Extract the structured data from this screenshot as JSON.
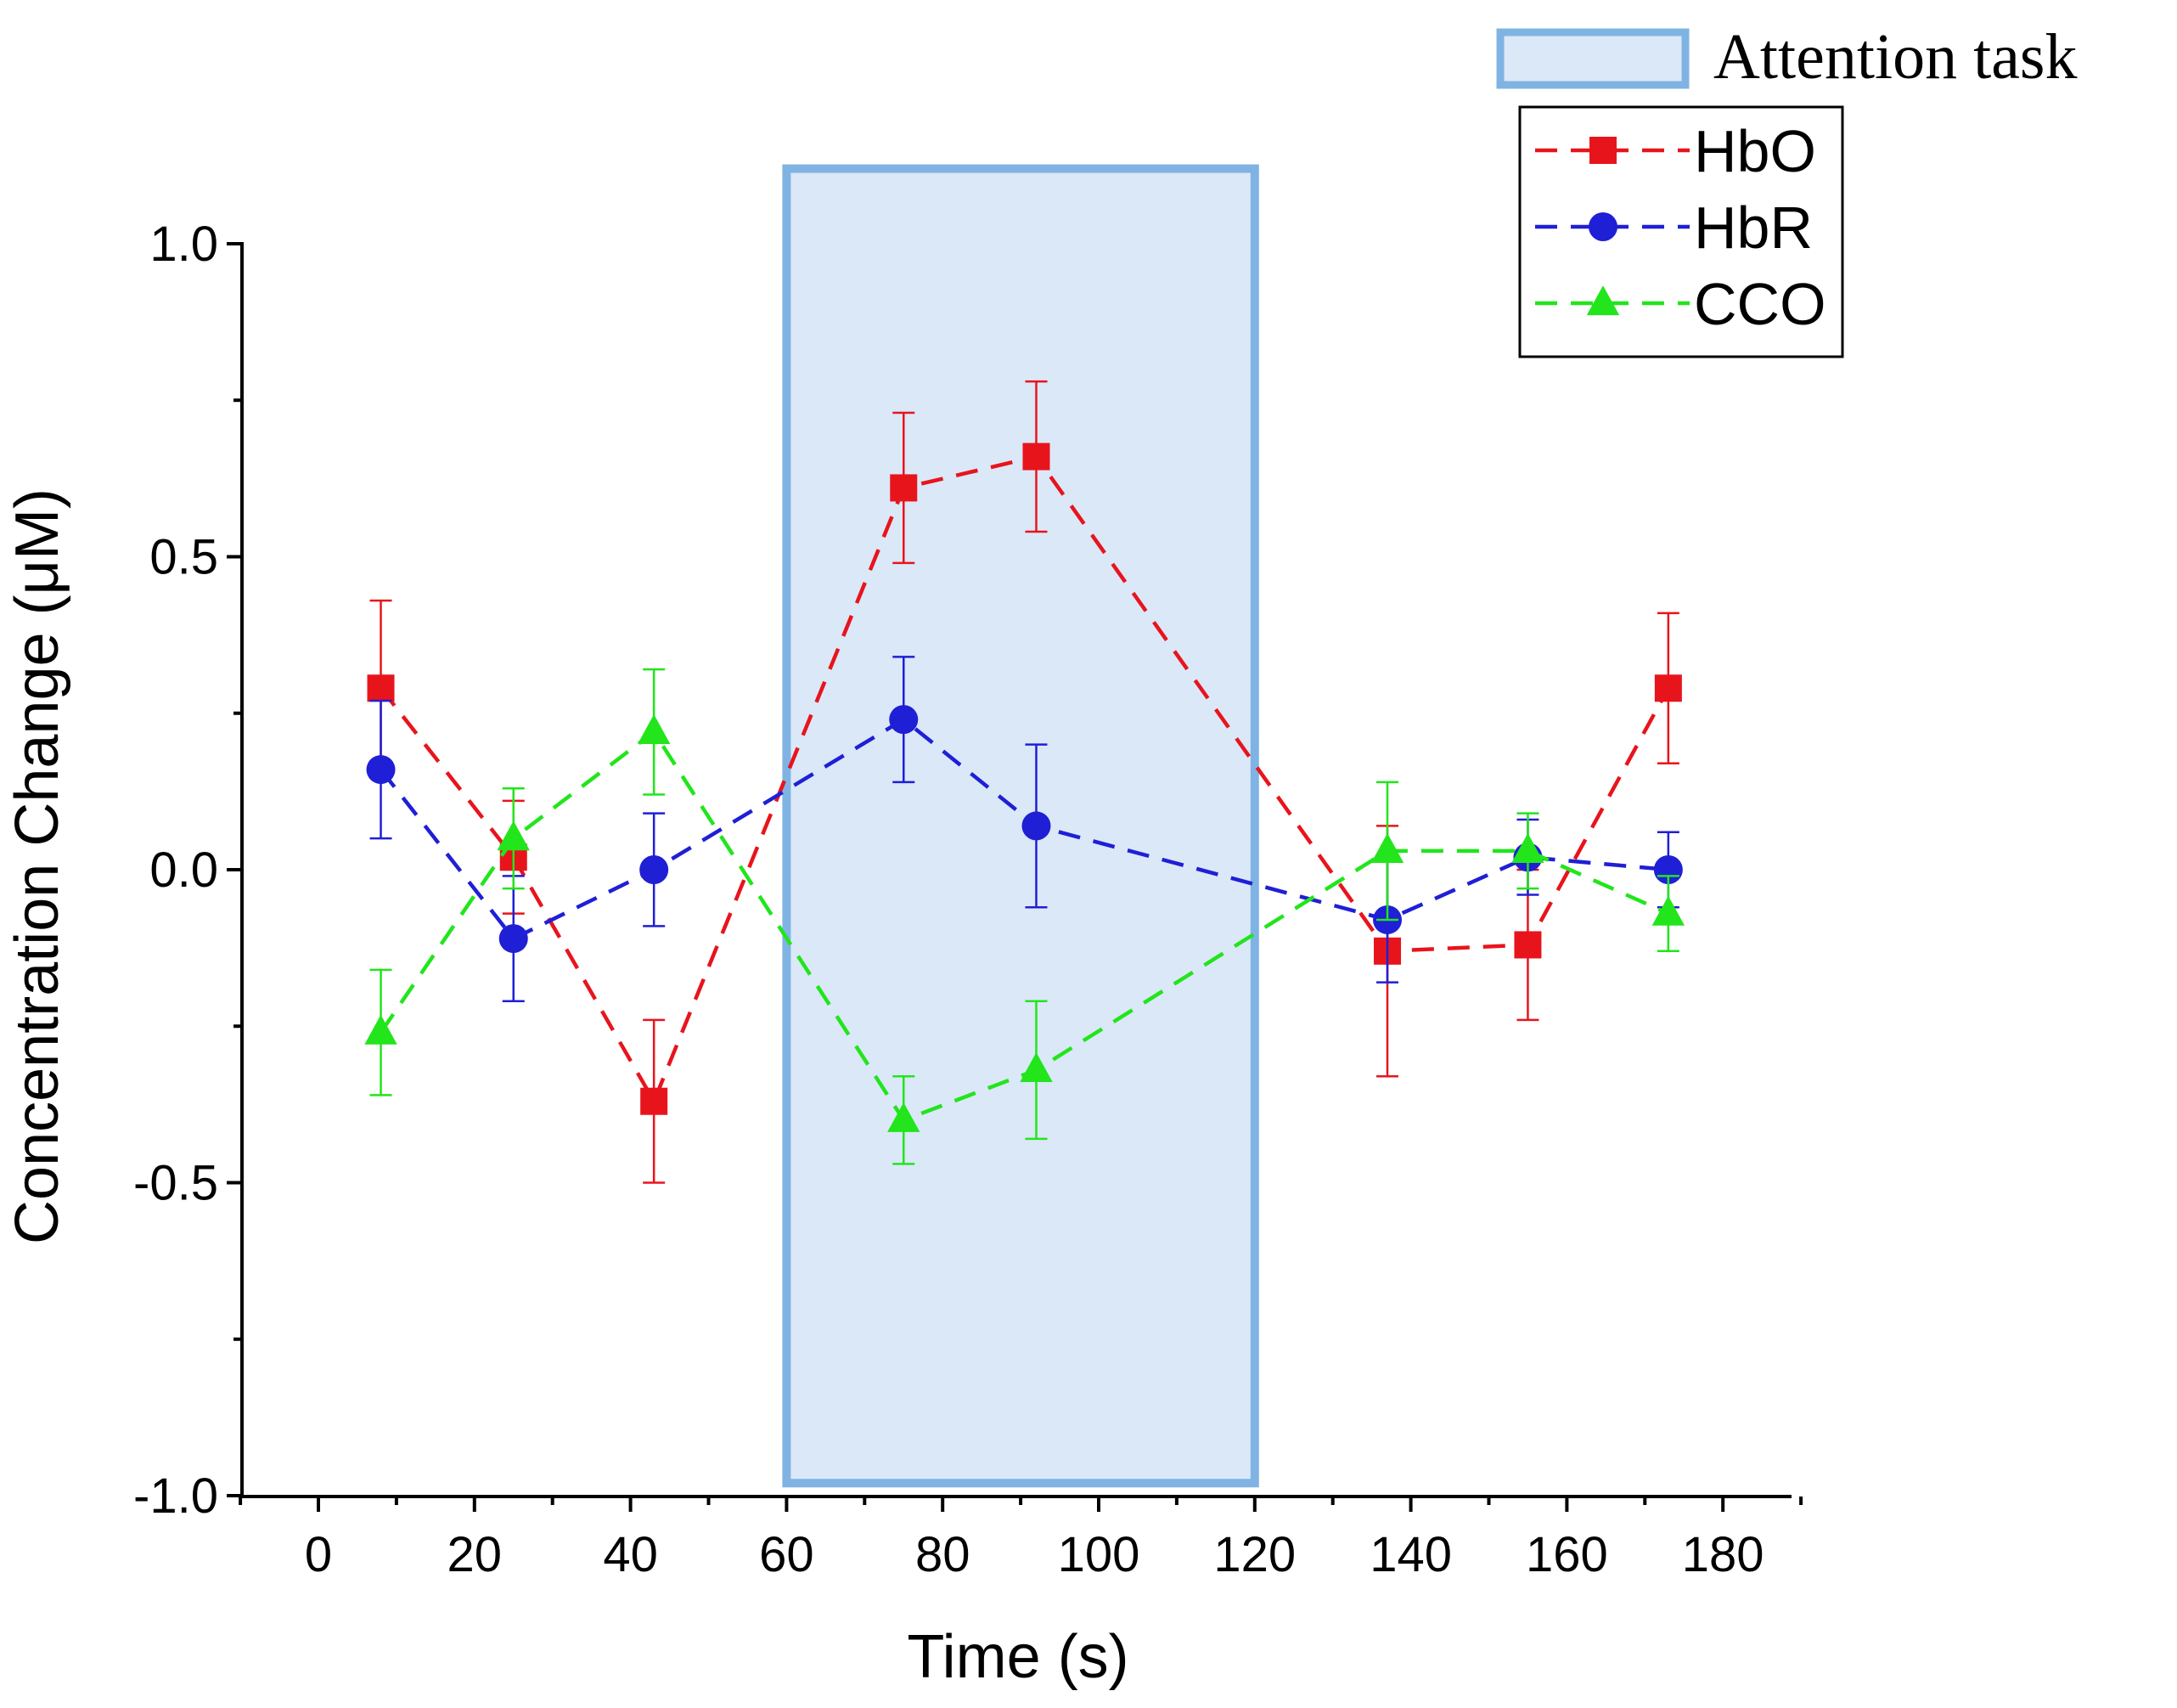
{
  "chart_data": {
    "type": "line",
    "xlabel": "Time (s)",
    "ylabel": "Concentration Change (μM)",
    "xlim": [
      -10,
      190
    ],
    "ylim": [
      -1.0,
      1.0
    ],
    "x_ticks": [
      0,
      20,
      40,
      60,
      80,
      100,
      120,
      140,
      160,
      180
    ],
    "x_tick_labels": [
      "0",
      "20",
      "40",
      "60",
      "80",
      "100",
      "120",
      "140",
      "160",
      "180"
    ],
    "y_ticks": [
      -1.0,
      -0.5,
      0.0,
      0.5,
      1.0
    ],
    "y_tick_labels": [
      "-1.0",
      "-0.5",
      "0.0",
      "0.5",
      "1.0"
    ],
    "grid": false,
    "shaded_region": {
      "label": "Attention task",
      "x_start": 60,
      "x_end": 120,
      "y_top": 1.12,
      "y_bottom": -0.98,
      "fill": "#dbe8f8",
      "stroke": "#7fb3e3"
    },
    "x": [
      8,
      25,
      43,
      75,
      92,
      137,
      155,
      173
    ],
    "series": [
      {
        "name": "HbO",
        "color": "#e8141c",
        "marker": "square",
        "values": [
          0.29,
          0.02,
          -0.37,
          0.61,
          0.66,
          -0.13,
          -0.12,
          0.29
        ],
        "errors": [
          0.14,
          0.09,
          0.13,
          0.12,
          0.12,
          0.2,
          0.12,
          0.12
        ]
      },
      {
        "name": "HbR",
        "color": "#1f1fd6",
        "marker": "circle",
        "values": [
          0.16,
          -0.11,
          0.0,
          0.24,
          0.07,
          -0.08,
          0.02,
          0.0
        ],
        "errors": [
          0.11,
          0.1,
          0.09,
          0.1,
          0.13,
          0.1,
          0.06,
          0.06
        ]
      },
      {
        "name": "CCO",
        "color": "#22e51c",
        "marker": "triangle",
        "values": [
          -0.26,
          0.05,
          0.22,
          -0.4,
          -0.32,
          0.03,
          0.03,
          -0.07
        ],
        "errors": [
          0.1,
          0.08,
          0.1,
          0.07,
          0.11,
          0.11,
          0.06,
          0.06
        ]
      }
    ]
  }
}
